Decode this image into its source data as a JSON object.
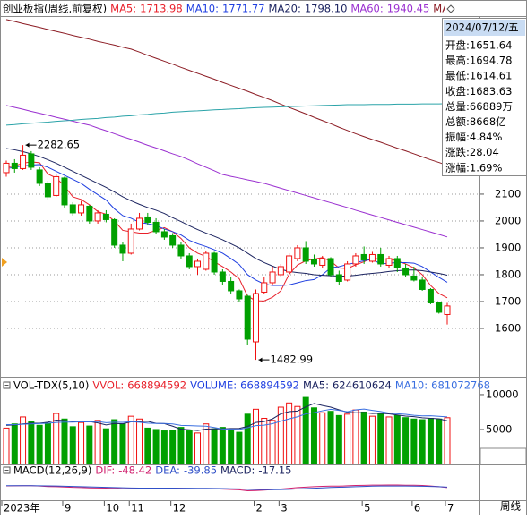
{
  "chart_data": [
    {
      "type": "candlestick",
      "title": "创业板指(周线,前复权)",
      "categories": [
        "2023年",
        null,
        null,
        null,
        null,
        null,
        null,
        "9",
        null,
        null,
        null,
        null,
        "10",
        null,
        null,
        "11",
        null,
        null,
        null,
        null,
        "12",
        null,
        null,
        null,
        null,
        null,
        null,
        null,
        null,
        null,
        "2",
        null,
        null,
        "3",
        null,
        null,
        null,
        null,
        null,
        null,
        null,
        null,
        null,
        "5",
        null,
        null,
        null,
        null,
        null,
        "6",
        null,
        null,
        null,
        "7"
      ],
      "open": [
        2180,
        2215,
        2195,
        2250,
        2190,
        2140,
        2095,
        2160,
        2060,
        2030,
        2055,
        2000,
        2025,
        2005,
        1910,
        1880,
        1970,
        2015,
        1995,
        1960,
        1945,
        1910,
        1870,
        1830,
        1820,
        1880,
        1810,
        1775,
        1740,
        1720,
        1550,
        1735,
        1770,
        1800,
        1810,
        1860,
        1900,
        1855,
        1835,
        1860,
        1800,
        1780,
        1840,
        1875,
        1850,
        1875,
        1835,
        1860,
        1825,
        1795,
        1780,
        1745,
        1695,
        1651.64
      ],
      "high": [
        2225,
        2230,
        2282.65,
        2260,
        2200,
        2150,
        2175,
        2165,
        2070,
        2075,
        2060,
        2040,
        2040,
        2010,
        1920,
        1990,
        2030,
        2030,
        2010,
        1970,
        1955,
        1920,
        1880,
        1860,
        1890,
        1885,
        1820,
        1790,
        1745,
        1725,
        1745,
        1790,
        1830,
        1840,
        1880,
        1910,
        1925,
        1875,
        1870,
        1865,
        1815,
        1850,
        1880,
        1905,
        1885,
        1900,
        1870,
        1870,
        1840,
        1830,
        1790,
        1750,
        1700,
        1694.78
      ],
      "low": [
        2165,
        2180,
        2190,
        2190,
        2130,
        2080,
        2090,
        2050,
        2020,
        2020,
        1990,
        1990,
        1995,
        1900,
        1850,
        1875,
        1965,
        1985,
        1950,
        1930,
        1900,
        1860,
        1820,
        1800,
        1815,
        1800,
        1760,
        1730,
        1700,
        1540,
        1482.99,
        1730,
        1760,
        1790,
        1800,
        1850,
        1840,
        1830,
        1825,
        1790,
        1760,
        1775,
        1830,
        1840,
        1845,
        1830,
        1825,
        1810,
        1790,
        1775,
        1740,
        1690,
        1655,
        1614.61
      ],
      "close": [
        2215,
        2195,
        2245,
        2200,
        2140,
        2090,
        2165,
        2060,
        2030,
        2060,
        2000,
        2030,
        2005,
        1910,
        1880,
        1970,
        2010,
        1995,
        1960,
        1940,
        1910,
        1870,
        1830,
        1850,
        1880,
        1810,
        1775,
        1740,
        1710,
        1560,
        1730,
        1770,
        1810,
        1830,
        1870,
        1900,
        1850,
        1840,
        1860,
        1800,
        1775,
        1840,
        1870,
        1855,
        1875,
        1840,
        1860,
        1825,
        1800,
        1780,
        1745,
        1695,
        1660,
        1683.63
      ],
      "up_color": "#f01010",
      "down_color": "#00a000",
      "ylim": [
        1420,
        2763
      ],
      "yticks": [
        1600,
        1700,
        1800,
        1900,
        2000,
        2100
      ],
      "grid": true,
      "series": [
        {
          "name": "MA5:",
          "value": 1713.98,
          "color": "#e8202a",
          "values": [
            2200,
            2205,
            2215,
            2220,
            2217,
            2175,
            2160,
            2130,
            2090,
            2080,
            2060,
            2035,
            2025,
            2000,
            1965,
            1960,
            1955,
            1955,
            1965,
            1975,
            1960,
            1935,
            1900,
            1880,
            1868,
            1848,
            1830,
            1810,
            1785,
            1720,
            1703,
            1702,
            1716,
            1740,
            1802,
            1836,
            1852,
            1858,
            1864,
            1850,
            1825,
            1823,
            1837,
            1848,
            1863,
            1856,
            1860,
            1851,
            1840,
            1825,
            1800,
            1760,
            1730,
            1713.98
          ]
        },
        {
          "name": "MA10:",
          "value": 1771.77,
          "color": "#1f3fe0",
          "values": [
            2195,
            2200,
            2205,
            2208,
            2210,
            2200,
            2185,
            2170,
            2155,
            2140,
            2118,
            2098,
            2078,
            2045,
            2020,
            2010,
            1995,
            1990,
            1983,
            1970,
            1960,
            1948,
            1928,
            1915,
            1905,
            1893,
            1880,
            1860,
            1838,
            1800,
            1780,
            1765,
            1760,
            1760,
            1762,
            1770,
            1778,
            1782,
            1800,
            1826,
            1830,
            1838,
            1845,
            1852,
            1857,
            1840,
            1843,
            1845,
            1845,
            1843,
            1830,
            1810,
            1790,
            1771.77
          ]
        },
        {
          "name": "MA20:",
          "value": 1798.1,
          "value_label": "1798.10",
          "color": "#1c2460",
          "values": [
            2270,
            2265,
            2258,
            2250,
            2240,
            2228,
            2215,
            2200,
            2185,
            2170,
            2155,
            2140,
            2125,
            2108,
            2090,
            2075,
            2062,
            2050,
            2040,
            2028,
            2012,
            1998,
            1982,
            1968,
            1955,
            1943,
            1930,
            1915,
            1900,
            1880,
            1860,
            1845,
            1832,
            1820,
            1812,
            1808,
            1805,
            1800,
            1798,
            1796,
            1795,
            1795,
            1798,
            1802,
            1805,
            1808,
            1812,
            1815,
            1817,
            1818,
            1815,
            1810,
            1805,
            1798.1
          ]
        },
        {
          "name": "MA60:",
          "value": 1940.45,
          "color": "#9a2fd0",
          "values": [
            2430,
            2423,
            2416,
            2408,
            2401,
            2394,
            2386,
            2379,
            2372,
            2364,
            2357,
            2346,
            2336,
            2325,
            2314,
            2304,
            2293,
            2282,
            2272,
            2261,
            2250,
            2240,
            2227,
            2213,
            2200,
            2187,
            2173,
            2166,
            2160,
            2153,
            2147,
            2140,
            2131,
            2122,
            2113,
            2104,
            2095,
            2086,
            2077,
            2068,
            2059,
            2050,
            2040,
            2031,
            2022,
            2013,
            2004,
            1995,
            1986,
            1977,
            1968,
            1959,
            1950,
            1940.45
          ]
        },
        {
          "name": "MA",
          "color": "#8c1c24",
          "values": [
            2750,
            2743,
            2735,
            2728,
            2721,
            2713,
            2706,
            2699,
            2691,
            2684,
            2677,
            2669,
            2662,
            2655,
            2647,
            2640,
            2629,
            2617,
            2606,
            2595,
            2584,
            2572,
            2561,
            2550,
            2539,
            2528,
            2516,
            2505,
            2494,
            2483,
            2471,
            2460,
            2448,
            2435,
            2423,
            2411,
            2399,
            2386,
            2374,
            2362,
            2349,
            2337,
            2325,
            2314,
            2303,
            2293,
            2282,
            2271,
            2261,
            2250,
            2239,
            2228,
            2218,
            2207
          ]
        },
        {
          "color": "#2aa3a8",
          "values": [
            2357,
            2359,
            2362,
            2364,
            2366,
            2368,
            2371,
            2373,
            2375,
            2378,
            2380,
            2382,
            2385,
            2387,
            2390,
            2392,
            2395,
            2397,
            2400,
            2402,
            2405,
            2407,
            2409,
            2410,
            2412,
            2414,
            2415,
            2417,
            2418,
            2420,
            2422,
            2423,
            2424,
            2425,
            2426,
            2427,
            2428,
            2429,
            2430,
            2431,
            2432,
            2433,
            2433,
            2433,
            2434,
            2434,
            2434,
            2435,
            2435,
            2435,
            2436,
            2436,
            2436,
            2437
          ]
        }
      ]
    },
    {
      "type": "bar",
      "title": "VOL-TDX(5,10)",
      "unit_label": "X10万",
      "values": [
        5200,
        5800,
        6800,
        6100,
        5600,
        5900,
        7300,
        6500,
        5400,
        6000,
        5500,
        6300,
        5100,
        6400,
        5800,
        6900,
        6500,
        5200,
        5000,
        4800,
        4900,
        5300,
        4800,
        4500,
        5800,
        5100,
        5300,
        5000,
        4600,
        7200,
        7900,
        6600,
        6300,
        8200,
        8800,
        8300,
        9600,
        8100,
        7400,
        7600,
        7000,
        7200,
        7800,
        7500,
        6900,
        7200,
        6800,
        7000,
        6700,
        6500,
        6400,
        6600,
        6500,
        6689
      ],
      "ylim": [
        0,
        12300
      ],
      "yticks": [
        5000,
        10000
      ],
      "legend": [
        {
          "name": "VVOL:",
          "value": 668894592,
          "color": "#e8202a"
        },
        {
          "name": "VOLUME:",
          "value": 668894592,
          "color": "#1f3fe0"
        }
      ],
      "series": [
        {
          "name": "MA5:",
          "value": 624610624,
          "color": "#1c2460",
          "values": [
            5600,
            5650,
            5800,
            5900,
            5900,
            6040,
            6340,
            6280,
            6140,
            6220,
            6140,
            5940,
            5660,
            5860,
            5820,
            6100,
            6140,
            6160,
            5880,
            5840,
            5480,
            5040,
            4960,
            4860,
            5060,
            5100,
            5100,
            5140,
            5160,
            5440,
            6000,
            6140,
            6520,
            7240,
            7560,
            7640,
            8240,
            8720,
            8440,
            8200,
            7820,
            7460,
            7400,
            7420,
            7280,
            7320,
            7240,
            7080,
            6920,
            6840,
            6680,
            6600,
            6540,
            6246
          ]
        },
        {
          "name": "MA10:",
          "value": 681072768,
          "color": "#3a6fe0",
          "values": [
            5700,
            5700,
            5750,
            5800,
            5850,
            5900,
            6000,
            6050,
            6050,
            6100,
            6090,
            6140,
            5970,
            6040,
            6020,
            6120,
            6040,
            5910,
            5870,
            5860,
            5790,
            5590,
            5550,
            5510,
            5470,
            5290,
            5070,
            5050,
            5010,
            5250,
            5550,
            5620,
            5830,
            6200,
            6520,
            6820,
            7240,
            7420,
            7680,
            7900,
            7730,
            7550,
            7820,
            7930,
            7740,
            7570,
            7350,
            7250,
            7170,
            7030,
            6950,
            6960,
            6890,
            6811
          ]
        }
      ]
    },
    {
      "type": "line",
      "title": "MACD(12,26,9)",
      "ylim": [
        -250,
        150
      ],
      "legend": [
        {
          "name": "MACD:",
          "value": -17.15,
          "color": "#1c2460"
        }
      ],
      "series": [
        {
          "name": "DIF:",
          "value": -48.42,
          "color": "#d0206e",
          "values": [
            -20,
            -18,
            -15,
            -16,
            -22,
            -30,
            -32,
            -38,
            -45,
            -48,
            -53,
            -55,
            -57,
            -64,
            -70,
            -68,
            -63,
            -60,
            -58,
            -57,
            -58,
            -61,
            -66,
            -67,
            -66,
            -70,
            -75,
            -81,
            -87,
            -104,
            -100,
            -93,
            -83,
            -73,
            -61,
            -48,
            -40,
            -33,
            -26,
            -24,
            -24,
            -18,
            -12,
            -9,
            -5,
            -5,
            -3,
            -4,
            -7,
            -8,
            -12,
            -21,
            -32,
            -48.42
          ]
        },
        {
          "name": "DEA:",
          "value": -39.85,
          "color": "#3050c8",
          "values": [
            -15,
            -16,
            -16,
            -16,
            -17,
            -20,
            -22,
            -25,
            -29,
            -33,
            -37,
            -40,
            -44,
            -48,
            -52,
            -55,
            -57,
            -58,
            -58,
            -58,
            -58,
            -59,
            -60,
            -61,
            -62,
            -63,
            -66,
            -69,
            -72,
            -79,
            -83,
            -85,
            -84,
            -82,
            -78,
            -72,
            -66,
            -59,
            -53,
            -47,
            -43,
            -38,
            -33,
            -28,
            -24,
            -22,
            -21,
            -21,
            -22,
            -23,
            -25,
            -28,
            -33,
            -39.85
          ]
        }
      ]
    }
  ],
  "info_panel": {
    "date": "2024/07/12/五",
    "rows": [
      {
        "label": "开盘:",
        "value": "1651.64"
      },
      {
        "label": "最高:",
        "value": "1694.78"
      },
      {
        "label": "最低:",
        "value": "1614.61"
      },
      {
        "label": "收盘:",
        "value": "1683.63"
      },
      {
        "label": "总量:",
        "value": "66889万"
      },
      {
        "label": "总额:",
        "value": "8668亿"
      },
      {
        "label": "振幅:",
        "value": "4.84%"
      },
      {
        "label": "涨跌:",
        "value": "28.04"
      },
      {
        "label": "涨幅:",
        "value": "1.69%"
      }
    ]
  },
  "period_label": "周线"
}
